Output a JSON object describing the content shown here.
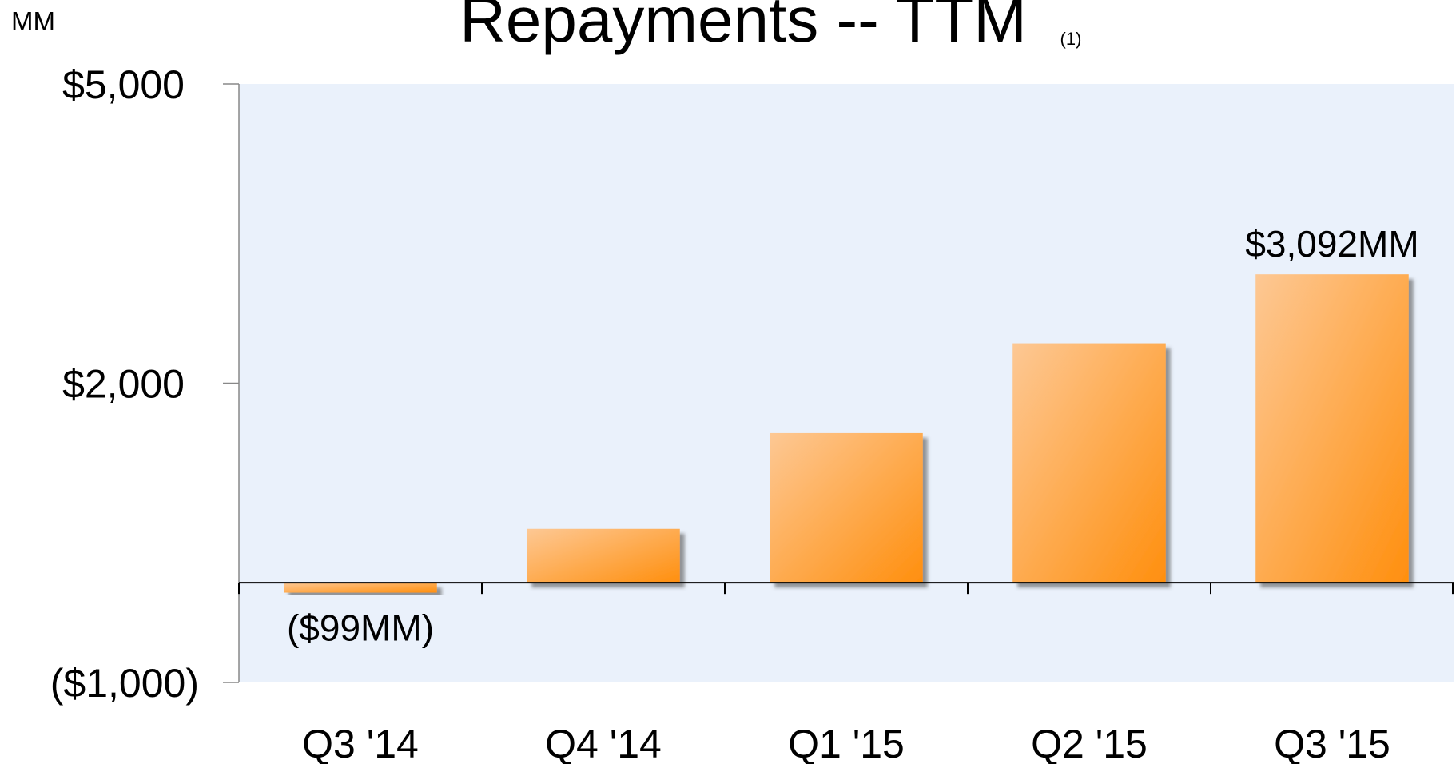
{
  "chart_data": {
    "type": "bar",
    "title": "Repayments -- TTM",
    "title_note": "(1)",
    "unit_label": "MM",
    "categories": [
      "Q3 '14",
      "Q4 '14",
      "Q1 '15",
      "Q2 '15",
      "Q3 '15"
    ],
    "values": [
      -99,
      540,
      1500,
      2400,
      3092
    ],
    "value_labels": [
      "($99MM)",
      null,
      null,
      null,
      "$3,092MM"
    ],
    "color_light": "#fdc894",
    "color": "#ff8f0e",
    "ylim": [
      -1000,
      5000
    ],
    "yticks": [
      {
        "value": -1000,
        "label": "($1,000)"
      },
      {
        "value": 2000,
        "label": "$2,000"
      },
      {
        "value": 5000,
        "label": "$5,000"
      }
    ],
    "plot_background": "#eaf1fb"
  }
}
